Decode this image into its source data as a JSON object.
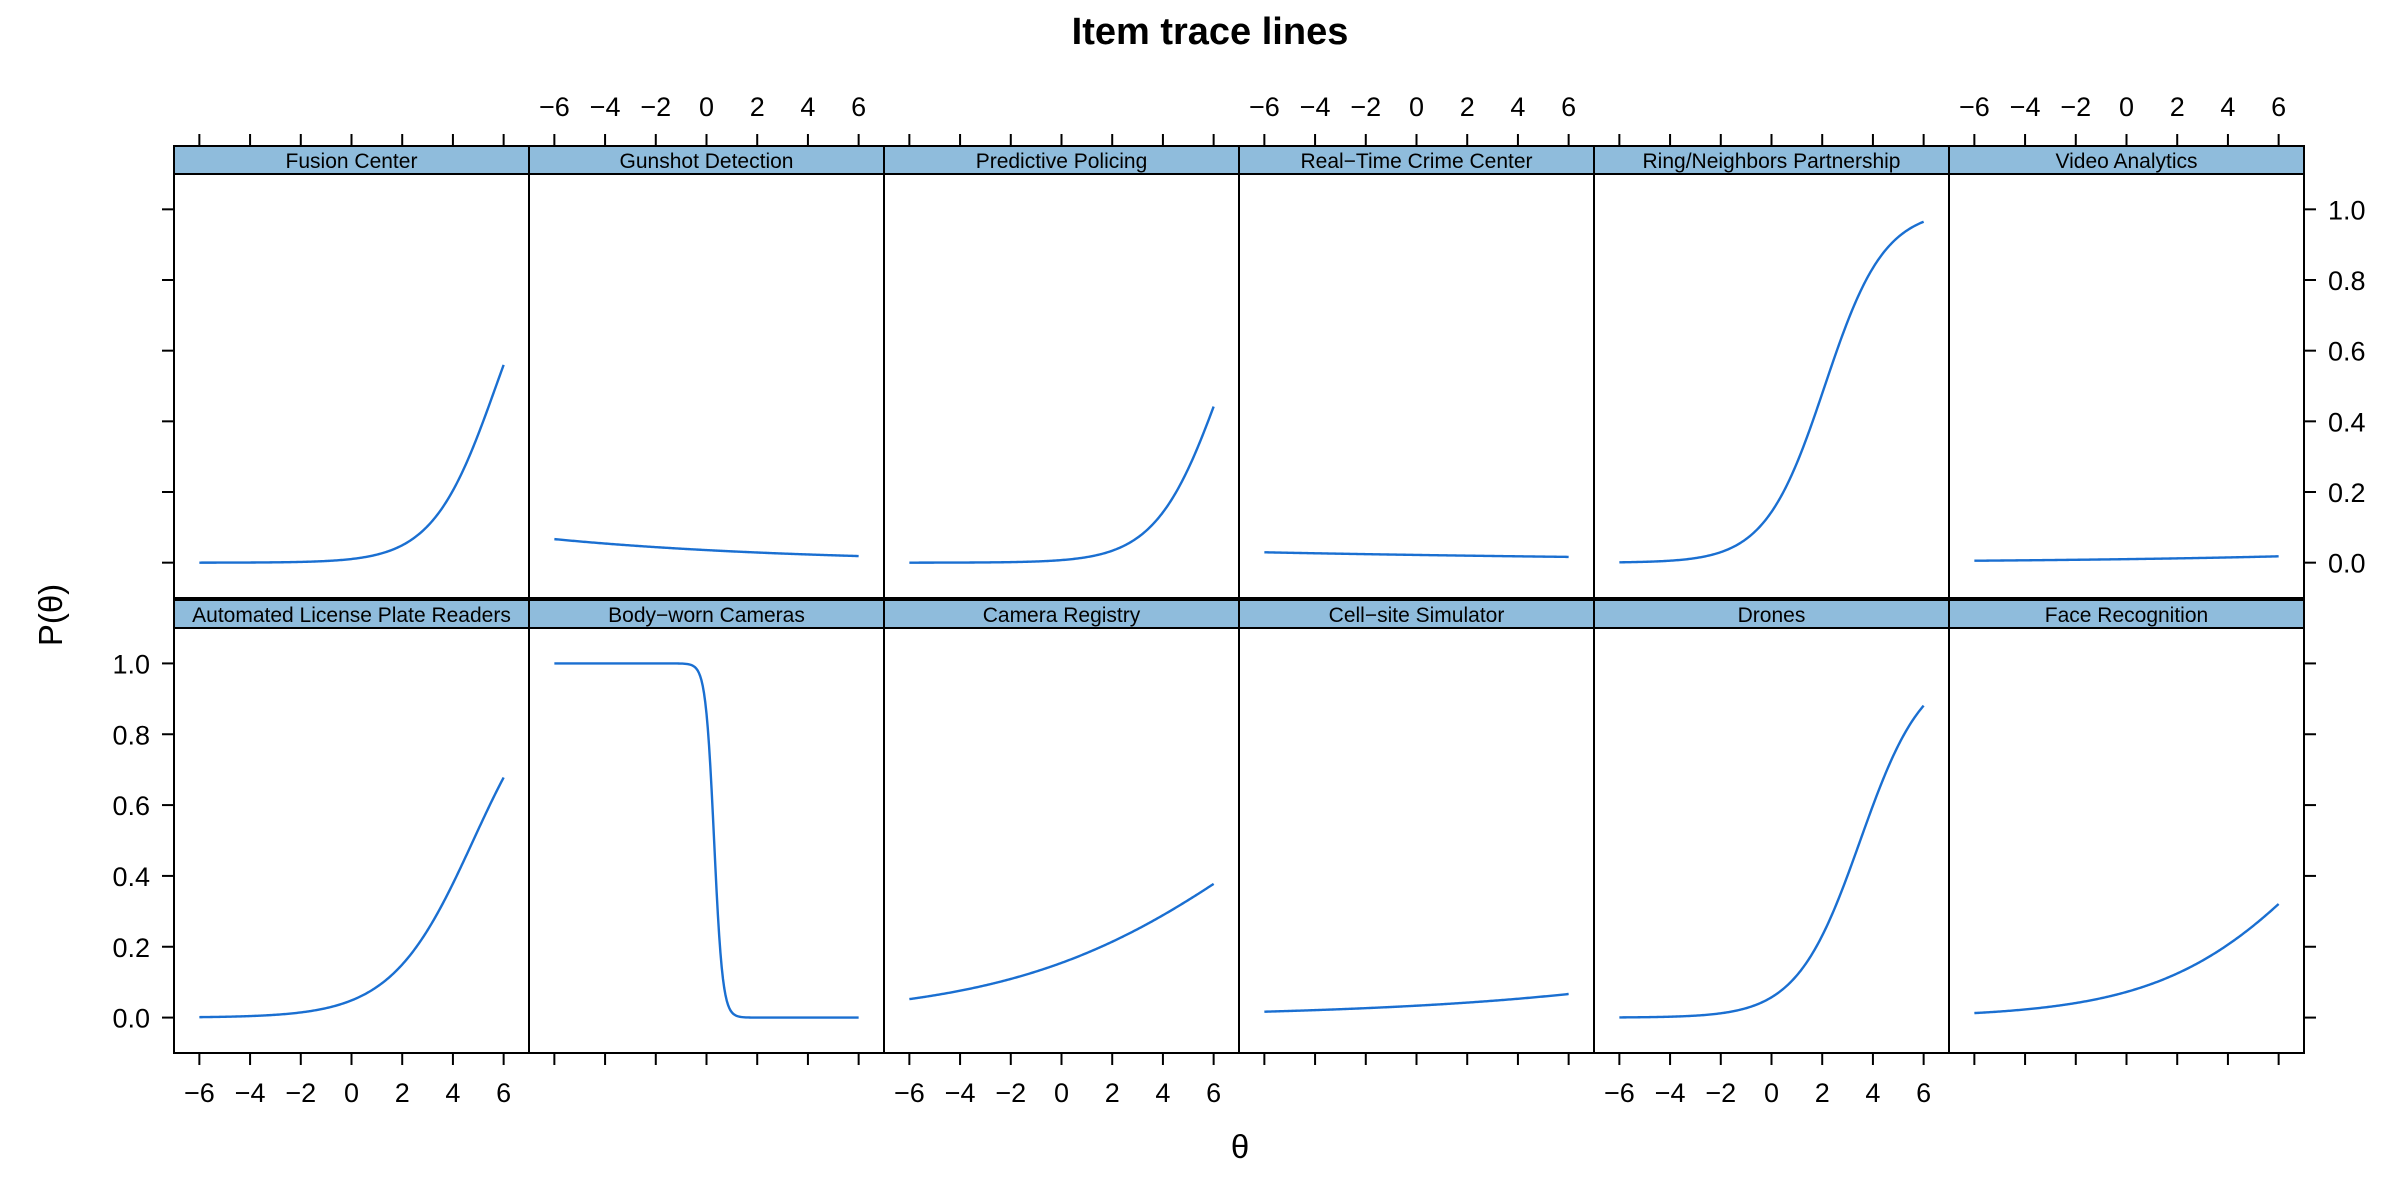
{
  "chart_data": {
    "type": "line",
    "title": "Item trace lines",
    "xlabel": "θ",
    "ylabel": "P(θ)",
    "xlim": [
      -7,
      7
    ],
    "ylim": [
      -0.1,
      1.1
    ],
    "xticks": [
      -6,
      -4,
      -2,
      0,
      2,
      4,
      6
    ],
    "xtick_labels": [
      "−6",
      "−4",
      "−2",
      "0",
      "2",
      "4",
      "6"
    ],
    "yticks": [
      0.0,
      0.2,
      0.4,
      0.6,
      0.8,
      1.0
    ],
    "ytick_labels": [
      "0.0",
      "0.2",
      "0.4",
      "0.6",
      "0.8",
      "1.0"
    ],
    "line_color": "#1a6fd1",
    "strip_color": "#8fbcdc",
    "layout": "2 rows × 6 columns, shared axes, alternating tick labels",
    "panels": [
      {
        "name": "Automated License Plate Readers",
        "a": 0.62,
        "b": 4.8,
        "g": 0.0
      },
      {
        "name": "Body−worn Cameras",
        "a": -6.0,
        "b": 0.3,
        "g": 0.0
      },
      {
        "name": "Camera Registry",
        "a": 0.2,
        "b": 8.5,
        "g": 0.0
      },
      {
        "name": "Cell−site Simulator",
        "a": 0.12,
        "b": 28.0,
        "g": 0.0
      },
      {
        "name": "Drones",
        "a": 0.8,
        "b": 3.5,
        "g": 0.0
      },
      {
        "name": "Face Recognition",
        "a": 0.3,
        "b": 8.5,
        "g": 0.0
      },
      {
        "name": "Fusion Center",
        "a": 0.8,
        "b": 5.7,
        "g": 0.0
      },
      {
        "name": "Gunshot Detection",
        "a": -0.11,
        "b": -30.0,
        "g": 0.0
      },
      {
        "name": "Predictive Policing",
        "a": 0.78,
        "b": 6.3,
        "g": 0.0
      },
      {
        "name": "Real−Time Crime Center",
        "a": -0.05,
        "b": -76.0,
        "g": 0.0
      },
      {
        "name": "Ring/Neighbors Partnership",
        "a": 0.85,
        "b": 2.1,
        "g": 0.0
      },
      {
        "name": "Video Analytics",
        "a": 0.1,
        "b": 46.0,
        "g": 0.0
      }
    ]
  }
}
